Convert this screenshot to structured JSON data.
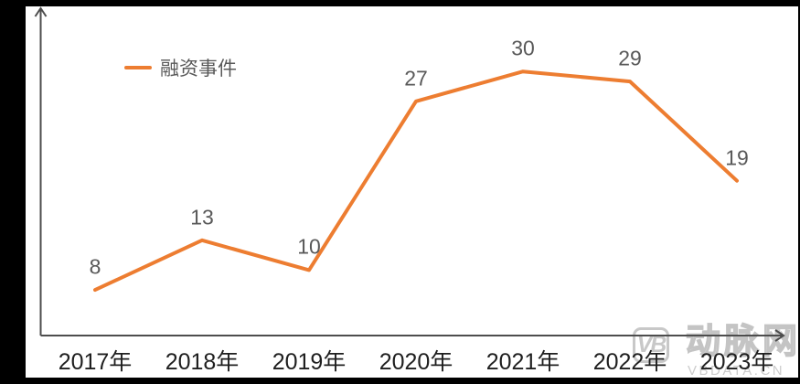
{
  "chart_data": {
    "type": "line",
    "title": "",
    "categories": [
      "2017年",
      "2018年",
      "2019年",
      "2020年",
      "2021年",
      "2022年",
      "2023年"
    ],
    "series": [
      {
        "name": "融资事件",
        "color": "#ED7D31",
        "values": [
          8,
          13,
          10,
          27,
          30,
          29,
          19
        ]
      }
    ],
    "data_labels_visible": true,
    "grid": false,
    "legend_position": "top-left",
    "x_axis": {
      "visible": true,
      "arrow": true,
      "tick_labels": [
        "2017年",
        "2018年",
        "2019年",
        "2020年",
        "2021年",
        "2022年",
        "2023年"
      ]
    },
    "y_axis": {
      "visible": true,
      "arrow": true,
      "tick_labels": []
    }
  },
  "legend": {
    "label": "融资事件"
  },
  "watermark": {
    "logo_text": "VB",
    "brand_name": "动脉网",
    "site_text": "VBDATA.CN"
  },
  "colors": {
    "line": "#ED7D31",
    "data_label": "#595959",
    "axis_label": "#1f1f1f",
    "axis": "#4d4d4d",
    "legend_text": "#595959",
    "watermark": "#c8c8c8",
    "frame": "#000000",
    "background": "#ffffff"
  }
}
